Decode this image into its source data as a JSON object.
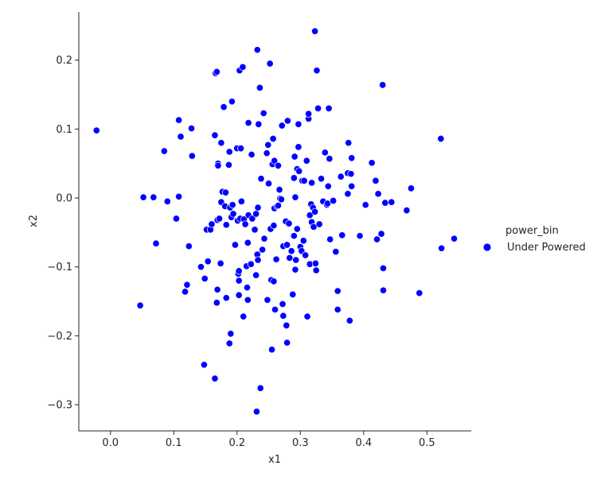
{
  "chart_data": {
    "type": "scatter",
    "xlabel": "x1",
    "ylabel": "x2",
    "xlim": [
      -0.05,
      0.57
    ],
    "ylim": [
      -0.338,
      0.27
    ],
    "xticks": [
      0.0,
      0.1,
      0.2,
      0.3,
      0.4,
      0.5
    ],
    "yticks": [
      -0.3,
      -0.2,
      -0.1,
      0.0,
      0.1,
      0.2
    ],
    "xtick_labels": [
      "0.0",
      "0.1",
      "0.2",
      "0.3",
      "0.4",
      "0.5"
    ],
    "ytick_labels": [
      "−0.3",
      "−0.2",
      "−0.1",
      "0.0",
      "0.1",
      "0.2"
    ],
    "grid": false,
    "legend": {
      "title": "power_bin",
      "placement": "right",
      "entries": [
        "Under Powered"
      ]
    },
    "colors": {
      "series": "#0000ff",
      "edge": "#ffffff",
      "axis": "#262626"
    },
    "series": [
      {
        "name": "Under Powered",
        "points": [
          [
            -0.022,
            0.098
          ],
          [
            0.047,
            -0.156
          ],
          [
            0.052,
            0.001
          ],
          [
            0.068,
            0.001
          ],
          [
            0.072,
            -0.066
          ],
          [
            0.085,
            0.068
          ],
          [
            0.09,
            -0.005
          ],
          [
            0.104,
            -0.03
          ],
          [
            0.108,
            0.113
          ],
          [
            0.108,
            0.002
          ],
          [
            0.111,
            0.089
          ],
          [
            0.118,
            -0.136
          ],
          [
            0.121,
            -0.126
          ],
          [
            0.124,
            -0.07
          ],
          [
            0.128,
            0.101
          ],
          [
            0.129,
            0.061
          ],
          [
            0.143,
            -0.1
          ],
          [
            0.148,
            -0.242
          ],
          [
            0.149,
            -0.117
          ],
          [
            0.152,
            -0.046
          ],
          [
            0.154,
            -0.092
          ],
          [
            0.158,
            -0.046
          ],
          [
            0.16,
            -0.038
          ],
          [
            0.165,
            0.091
          ],
          [
            0.165,
            -0.262
          ],
          [
            0.166,
            0.181
          ],
          [
            0.168,
            0.183
          ],
          [
            0.168,
            -0.152
          ],
          [
            0.169,
            -0.133
          ],
          [
            0.169,
            -0.032
          ],
          [
            0.17,
            0.05
          ],
          [
            0.17,
            0.047
          ],
          [
            0.172,
            -0.03
          ],
          [
            0.174,
            -0.095
          ],
          [
            0.175,
            0.08
          ],
          [
            0.175,
            -0.006
          ],
          [
            0.177,
            0.009
          ],
          [
            0.179,
            0.132
          ],
          [
            0.181,
            -0.012
          ],
          [
            0.182,
            0.008
          ],
          [
            0.183,
            -0.145
          ],
          [
            0.183,
            -0.039
          ],
          [
            0.187,
            0.048
          ],
          [
            0.188,
            0.067
          ],
          [
            0.188,
            -0.211
          ],
          [
            0.189,
            -0.014
          ],
          [
            0.19,
            -0.197
          ],
          [
            0.191,
            -0.028
          ],
          [
            0.192,
            0.14
          ],
          [
            0.193,
            -0.01
          ],
          [
            0.194,
            -0.023
          ],
          [
            0.197,
            -0.068
          ],
          [
            0.2,
            0.072
          ],
          [
            0.201,
            -0.033
          ],
          [
            0.202,
            -0.11
          ],
          [
            0.203,
            -0.12
          ],
          [
            0.203,
            -0.106
          ],
          [
            0.203,
            -0.141
          ],
          [
            0.204,
            0.185
          ],
          [
            0.205,
            -0.03
          ],
          [
            0.206,
            0.072
          ],
          [
            0.207,
            -0.005
          ],
          [
            0.209,
            0.19
          ],
          [
            0.21,
            -0.172
          ],
          [
            0.211,
            -0.031
          ],
          [
            0.213,
            -0.038
          ],
          [
            0.215,
            -0.099
          ],
          [
            0.216,
            -0.13
          ],
          [
            0.217,
            -0.148
          ],
          [
            0.217,
            -0.065
          ],
          [
            0.218,
            0.109
          ],
          [
            0.218,
            -0.025
          ],
          [
            0.222,
            -0.096
          ],
          [
            0.223,
            0.063
          ],
          [
            0.224,
            -0.03
          ],
          [
            0.228,
            -0.046
          ],
          [
            0.23,
            -0.112
          ],
          [
            0.23,
            -0.023
          ],
          [
            0.231,
            -0.31
          ],
          [
            0.232,
            0.215
          ],
          [
            0.232,
            -0.082
          ],
          [
            0.233,
            -0.09
          ],
          [
            0.233,
            -0.014
          ],
          [
            0.234,
            0.107
          ],
          [
            0.236,
            0.16
          ],
          [
            0.237,
            -0.276
          ],
          [
            0.238,
            0.028
          ],
          [
            0.24,
            -0.075
          ],
          [
            0.242,
            0.123
          ],
          [
            0.243,
            -0.059
          ],
          [
            0.247,
            0.065
          ],
          [
            0.248,
            -0.148
          ],
          [
            0.249,
            0.077
          ],
          [
            0.25,
            0.021
          ],
          [
            0.252,
            0.195
          ],
          [
            0.253,
            -0.045
          ],
          [
            0.254,
            -0.119
          ],
          [
            0.255,
            -0.22
          ],
          [
            0.256,
            0.049
          ],
          [
            0.257,
            0.086
          ],
          [
            0.258,
            -0.121
          ],
          [
            0.258,
            -0.04
          ],
          [
            0.259,
            0.054
          ],
          [
            0.259,
            -0.015
          ],
          [
            0.26,
            -0.162
          ],
          [
            0.262,
            -0.089
          ],
          [
            0.263,
            -0.012
          ],
          [
            0.265,
            -0.011
          ],
          [
            0.265,
            0.046
          ],
          [
            0.265,
            0.047
          ],
          [
            0.267,
            0.012
          ],
          [
            0.268,
            -0.001
          ],
          [
            0.27,
            -0.002
          ],
          [
            0.271,
            0.105
          ],
          [
            0.272,
            -0.154
          ],
          [
            0.273,
            -0.171
          ],
          [
            0.273,
            -0.07
          ],
          [
            0.277,
            -0.034
          ],
          [
            0.278,
            -0.185
          ],
          [
            0.279,
            -0.068
          ],
          [
            0.279,
            -0.21
          ],
          [
            0.28,
            0.112
          ],
          [
            0.282,
            -0.037
          ],
          [
            0.283,
            -0.087
          ],
          [
            0.286,
            -0.077
          ],
          [
            0.288,
            -0.14
          ],
          [
            0.29,
            0.029
          ],
          [
            0.29,
            -0.055
          ],
          [
            0.291,
            0.06
          ],
          [
            0.292,
            0.001
          ],
          [
            0.292,
            -0.104
          ],
          [
            0.293,
            -0.09
          ],
          [
            0.295,
            0.042
          ],
          [
            0.295,
            -0.045
          ],
          [
            0.297,
            0.074
          ],
          [
            0.297,
            0.107
          ],
          [
            0.298,
            0.039
          ],
          [
            0.3,
            -0.071
          ],
          [
            0.302,
            -0.077
          ],
          [
            0.303,
            0.025
          ],
          [
            0.305,
            -0.062
          ],
          [
            0.306,
            0.025
          ],
          [
            0.308,
            -0.083
          ],
          [
            0.31,
            0.054
          ],
          [
            0.311,
            -0.172
          ],
          [
            0.313,
            0.115
          ],
          [
            0.313,
            0.122
          ],
          [
            0.315,
            -0.025
          ],
          [
            0.315,
            -0.096
          ],
          [
            0.317,
            -0.009
          ],
          [
            0.318,
            -0.035
          ],
          [
            0.318,
            0.022
          ],
          [
            0.32,
            -0.014
          ],
          [
            0.321,
            -0.042
          ],
          [
            0.323,
            -0.02
          ],
          [
            0.323,
            0.242
          ],
          [
            0.324,
            -0.095
          ],
          [
            0.325,
            -0.105
          ],
          [
            0.326,
            0.185
          ],
          [
            0.328,
            0.13
          ],
          [
            0.33,
            -0.038
          ],
          [
            0.333,
            0.028
          ],
          [
            0.336,
            -0.005
          ],
          [
            0.339,
            0.066
          ],
          [
            0.342,
            -0.01
          ],
          [
            0.343,
            -0.008
          ],
          [
            0.344,
            0.017
          ],
          [
            0.345,
            0.13
          ],
          [
            0.346,
            0.057
          ],
          [
            0.347,
            -0.06
          ],
          [
            0.352,
            -0.004
          ],
          [
            0.356,
            -0.078
          ],
          [
            0.359,
            -0.162
          ],
          [
            0.359,
            -0.135
          ],
          [
            0.364,
            0.031
          ],
          [
            0.366,
            -0.054
          ],
          [
            0.375,
            0.006
          ],
          [
            0.375,
            0.036
          ],
          [
            0.376,
            0.08
          ],
          [
            0.378,
            -0.178
          ],
          [
            0.38,
            0.035
          ],
          [
            0.381,
            0.058
          ],
          [
            0.381,
            0.017
          ],
          [
            0.394,
            -0.055
          ],
          [
            0.403,
            -0.01
          ],
          [
            0.413,
            0.051
          ],
          [
            0.419,
            0.025
          ],
          [
            0.421,
            -0.06
          ],
          [
            0.423,
            0.006
          ],
          [
            0.428,
            -0.052
          ],
          [
            0.43,
            0.164
          ],
          [
            0.431,
            -0.102
          ],
          [
            0.431,
            -0.134
          ],
          [
            0.434,
            -0.007
          ],
          [
            0.444,
            -0.006
          ],
          [
            0.468,
            -0.018
          ],
          [
            0.475,
            0.014
          ],
          [
            0.488,
            -0.138
          ],
          [
            0.522,
            0.086
          ],
          [
            0.523,
            -0.073
          ],
          [
            0.543,
            -0.059
          ]
        ]
      }
    ]
  }
}
